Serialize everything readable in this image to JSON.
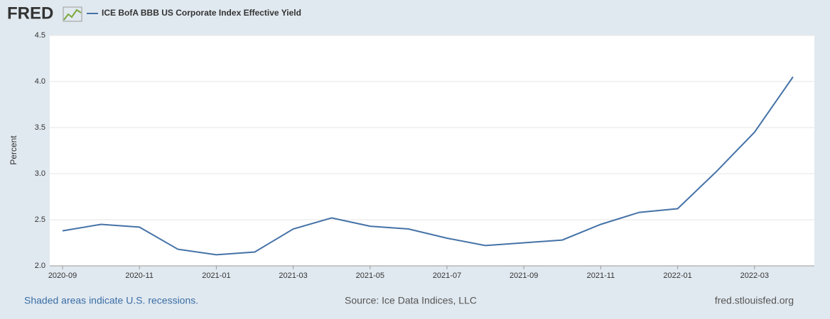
{
  "chart_data": {
    "type": "line",
    "logo": "FRED",
    "ylabel": "Percent",
    "x": [
      "2020-09",
      "2020-10",
      "2020-11",
      "2020-12",
      "2021-01",
      "2021-02",
      "2021-03",
      "2021-04",
      "2021-05",
      "2021-06",
      "2021-07",
      "2021-08",
      "2021-09",
      "2021-10",
      "2021-11",
      "2021-12",
      "2022-01",
      "2022-02",
      "2022-03",
      "2022-04"
    ],
    "series": [
      {
        "name": "ICE BofA BBB US Corporate Index Effective Yield",
        "color": "#4572a7",
        "values": [
          2.38,
          2.45,
          2.42,
          2.18,
          2.12,
          2.15,
          2.4,
          2.52,
          2.43,
          2.4,
          2.3,
          2.22,
          2.25,
          2.28,
          2.45,
          2.58,
          2.62,
          3.02,
          3.45,
          4.05
        ]
      }
    ],
    "xticks": [
      "2020-09",
      "2020-11",
      "2021-01",
      "2021-03",
      "2021-05",
      "2021-07",
      "2021-09",
      "2021-11",
      "2022-01",
      "2022-03"
    ],
    "ylim": [
      2,
      4.5
    ],
    "yticks": [
      {
        "value": 2,
        "label": "2.0"
      },
      2.5,
      {
        "value": 3,
        "label": "3.0"
      },
      3.5,
      {
        "value": 4,
        "label": "4.0"
      },
      4.5
    ],
    "grid": true,
    "note": "Shaded areas indicate U.S. recessions.",
    "source": "Source: Ice Data Indices, LLC",
    "site": "fred.stlouisfed.org"
  }
}
